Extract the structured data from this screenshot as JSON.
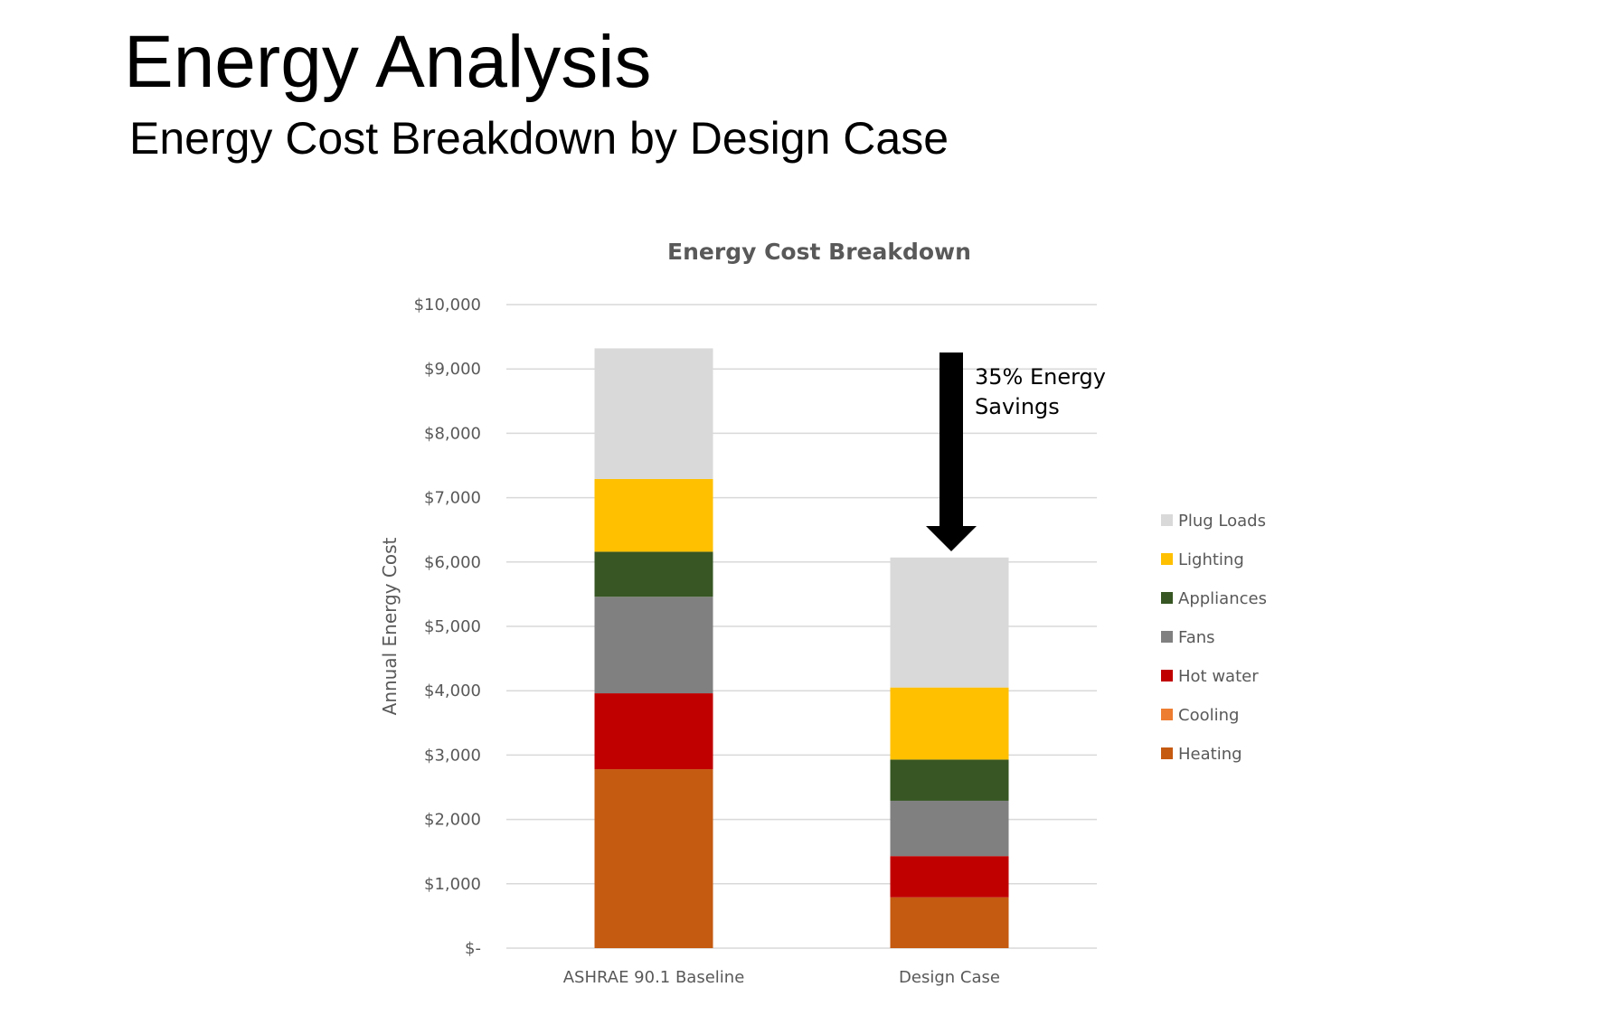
{
  "slide": {
    "title": "Energy Analysis",
    "subtitle": "Energy Cost Breakdown by Design Case"
  },
  "chart_data": {
    "type": "bar",
    "stacked": true,
    "title": "Energy Cost Breakdown",
    "xlabel": "",
    "ylabel": "Annual Energy Cost",
    "ylim": [
      0,
      10000
    ],
    "yticks": [
      0,
      1000,
      2000,
      3000,
      4000,
      5000,
      6000,
      7000,
      8000,
      9000,
      10000
    ],
    "ytick_labels": [
      "$-",
      "$1,000",
      "$2,000",
      "$3,000",
      "$4,000",
      "$5,000",
      "$6,000",
      "$7,000",
      "$8,000",
      "$9,000",
      "$10,000"
    ],
    "grid": true,
    "legend_position": "right",
    "categories": [
      "ASHRAE 90.1 Baseline",
      "Design Case"
    ],
    "series": [
      {
        "name": "Heating",
        "color": "#C55A11",
        "values": [
          2780,
          790
        ]
      },
      {
        "name": "Cooling",
        "color": "#ED7D31",
        "values": [
          0,
          0
        ]
      },
      {
        "name": "Hot water",
        "color": "#C00000",
        "values": [
          1180,
          640
        ]
      },
      {
        "name": "Fans",
        "color": "#808080",
        "values": [
          1500,
          860
        ]
      },
      {
        "name": "Appliances",
        "color": "#375623",
        "values": [
          700,
          640
        ]
      },
      {
        "name": "Lighting",
        "color": "#FFC000",
        "values": [
          1130,
          1120
        ]
      },
      {
        "name": "Plug Loads",
        "color": "#D9D9D9",
        "values": [
          2030,
          2020
        ]
      }
    ],
    "annotation": {
      "lines": [
        "35% Energy",
        "Savings"
      ]
    }
  }
}
